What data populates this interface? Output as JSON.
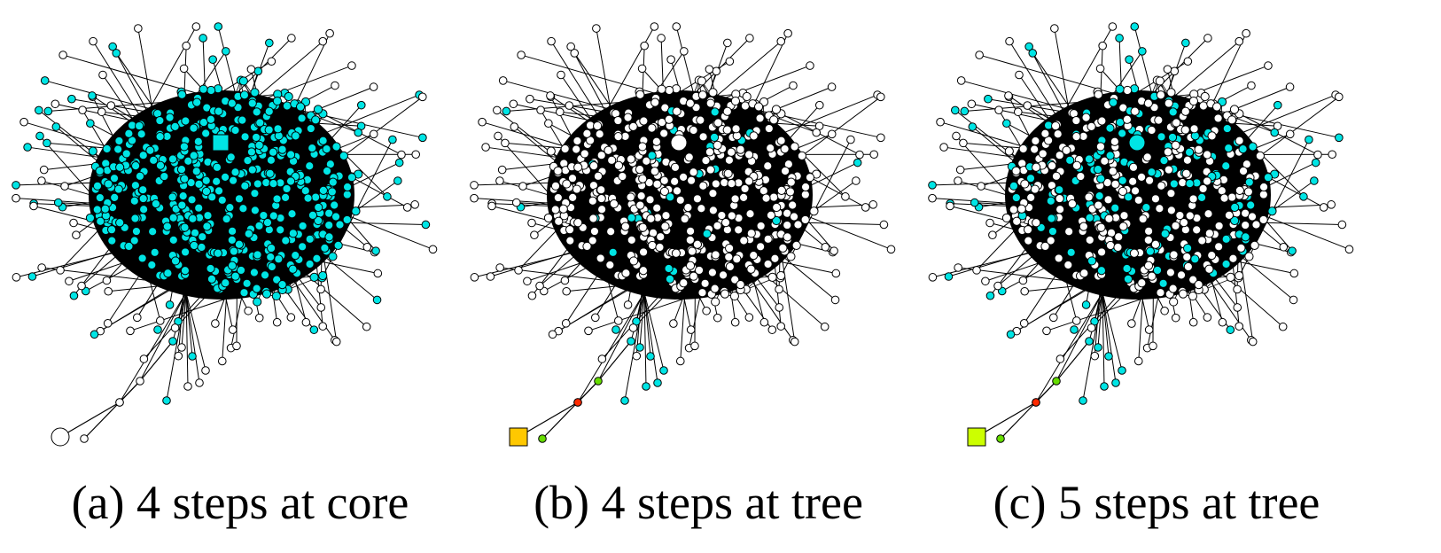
{
  "figure": {
    "panels": [
      {
        "id": "a",
        "caption": "(a) 4 steps at core",
        "node_colors": {
          "default": "#00e5e5",
          "periphery": "#ffffff"
        },
        "core_fill_fraction": 1.0,
        "source_marker": {
          "shape": "square",
          "color": "#00e5e5"
        },
        "target_marker": {
          "shape": "circle",
          "color": "#ffffff"
        },
        "tree_colors": [
          "#ffffff",
          "#ffffff",
          "#ffffff"
        ]
      },
      {
        "id": "b",
        "caption": "(b) 4 steps at tree",
        "node_colors": {
          "default": "#ffffff",
          "highlight": "#00e5e5"
        },
        "core_fill_fraction": 0.05,
        "source_marker": {
          "shape": "circle",
          "color": "#ffffff"
        },
        "target_marker": {
          "shape": "square",
          "color": "#ffc800"
        },
        "tree_colors": [
          "#ff2a00",
          "#66dd00",
          "#00e5e5"
        ]
      },
      {
        "id": "c",
        "caption": "(c) 5 steps at tree",
        "node_colors": {
          "default": "#ffffff",
          "highlight": "#00e5e5"
        },
        "core_fill_fraction": 0.28,
        "source_marker": {
          "shape": "circle",
          "color": "#00e5e5"
        },
        "target_marker": {
          "shape": "square",
          "color": "#ccff00"
        },
        "tree_colors": [
          "#ff2a00",
          "#66dd00",
          "#00e5e5"
        ]
      }
    ]
  }
}
